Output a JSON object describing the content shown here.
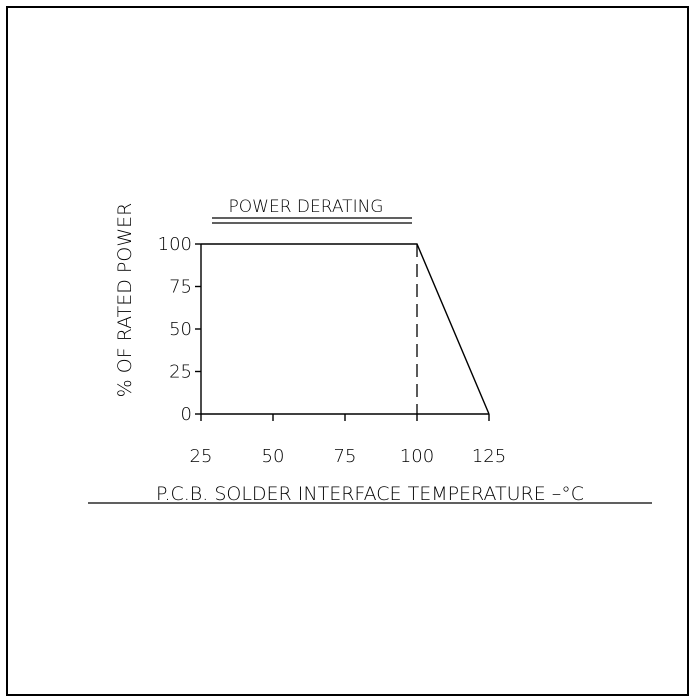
{
  "chart_data": {
    "type": "line",
    "title": "POWER DERATING",
    "xlabel": "P.C.B. SOLDER INTERFACE TEMPERATURE –°C",
    "ylabel": "% OF RATED POWER",
    "x_ticks": [
      "25",
      "50",
      "75",
      "100",
      "125"
    ],
    "y_ticks": [
      "0",
      "25",
      "50",
      "75",
      "100"
    ],
    "xlim": [
      25,
      125
    ],
    "ylim": [
      0,
      100
    ],
    "grid": false,
    "series": [
      {
        "x": [
          25,
          100,
          125
        ],
        "y": [
          100,
          100,
          0
        ]
      }
    ],
    "reference_line": {
      "x": 100,
      "style": "dashed"
    },
    "colors": {
      "line": "#000000",
      "background": "#ffffff"
    }
  }
}
